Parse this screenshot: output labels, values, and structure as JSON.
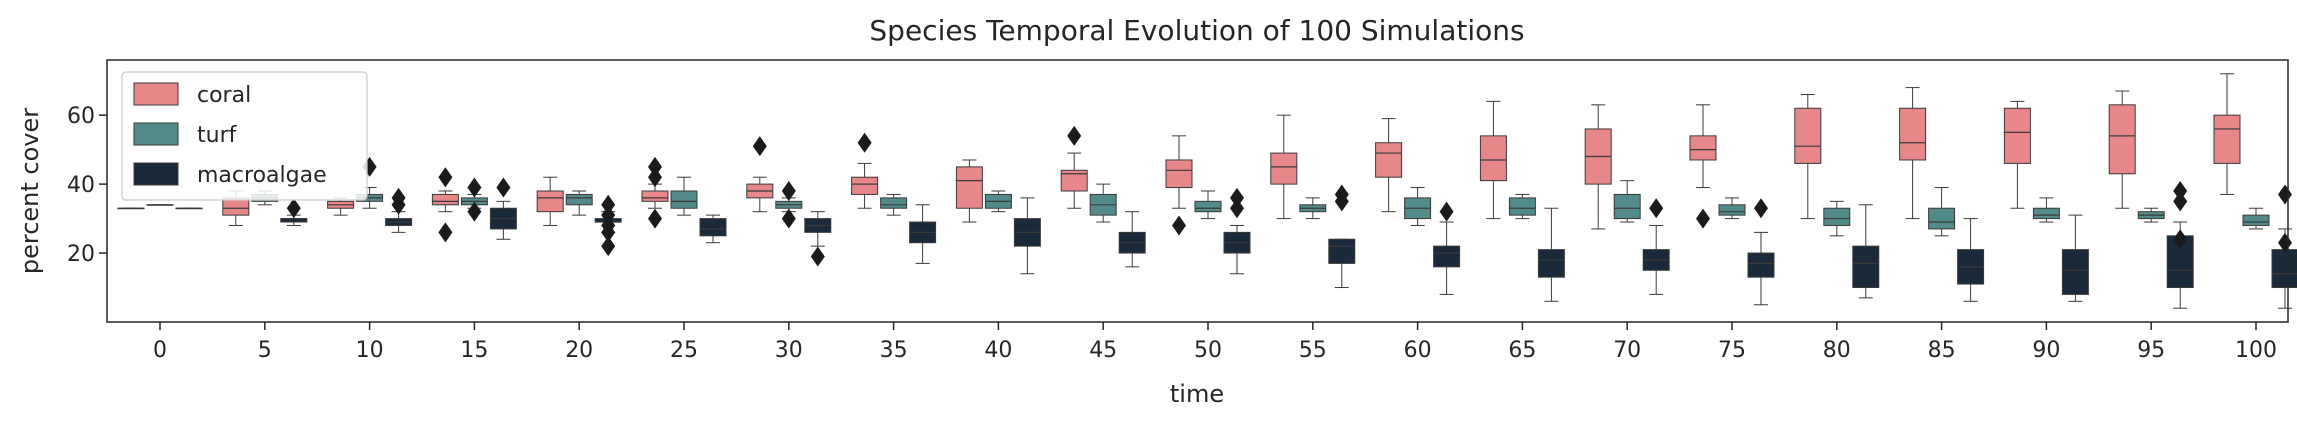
{
  "chart_data": {
    "type": "box",
    "title": "Species Temporal Evolution of 100 Simulations",
    "xlabel": "time",
    "ylabel": "percent cover",
    "categories": [
      "0",
      "5",
      "10",
      "15",
      "20",
      "25",
      "30",
      "35",
      "40",
      "45",
      "50",
      "55",
      "60",
      "65",
      "70",
      "75",
      "80",
      "85",
      "90",
      "95",
      "100"
    ],
    "ylim": [
      0,
      76
    ],
    "yticks": [
      20,
      40,
      60
    ],
    "grid": false,
    "legend_position": "top-left",
    "series": [
      {
        "name": "coral",
        "color": "#e8878a",
        "boxes": [
          {
            "min": 33,
            "q1": 33,
            "median": 33,
            "q3": 33,
            "max": 33,
            "outliers": []
          },
          {
            "min": 28,
            "q1": 31,
            "median": 33,
            "q3": 36,
            "max": 38,
            "outliers": []
          },
          {
            "min": 31,
            "q1": 33,
            "median": 34,
            "q3": 35,
            "max": 36,
            "outliers": []
          },
          {
            "min": 32,
            "q1": 34,
            "median": 35,
            "q3": 37,
            "max": 38,
            "outliers": [
              26,
              42
            ]
          },
          {
            "min": 28,
            "q1": 32,
            "median": 36,
            "q3": 38,
            "max": 42,
            "outliers": []
          },
          {
            "min": 33,
            "q1": 35,
            "median": 36,
            "q3": 38,
            "max": 40,
            "outliers": [
              30,
              42,
              45
            ]
          },
          {
            "min": 32,
            "q1": 36,
            "median": 38,
            "q3": 40,
            "max": 42,
            "outliers": [
              51
            ]
          },
          {
            "min": 33,
            "q1": 37,
            "median": 40,
            "q3": 42,
            "max": 46,
            "outliers": [
              52
            ]
          },
          {
            "min": 29,
            "q1": 33,
            "median": 41,
            "q3": 45,
            "max": 47,
            "outliers": []
          },
          {
            "min": 33,
            "q1": 38,
            "median": 43,
            "q3": 44,
            "max": 49,
            "outliers": [
              54
            ]
          },
          {
            "min": 33,
            "q1": 39,
            "median": 44,
            "q3": 47,
            "max": 54,
            "outliers": [
              28
            ]
          },
          {
            "min": 30,
            "q1": 40,
            "median": 45,
            "q3": 49,
            "max": 60,
            "outliers": []
          },
          {
            "min": 32,
            "q1": 42,
            "median": 49,
            "q3": 52,
            "max": 59,
            "outliers": []
          },
          {
            "min": 30,
            "q1": 41,
            "median": 47,
            "q3": 54,
            "max": 64,
            "outliers": []
          },
          {
            "min": 27,
            "q1": 40,
            "median": 48,
            "q3": 56,
            "max": 63,
            "outliers": []
          },
          {
            "min": 39,
            "q1": 47,
            "median": 50,
            "q3": 54,
            "max": 63,
            "outliers": [
              30
            ]
          },
          {
            "min": 30,
            "q1": 46,
            "median": 51,
            "q3": 62,
            "max": 66,
            "outliers": []
          },
          {
            "min": 30,
            "q1": 47,
            "median": 52,
            "q3": 62,
            "max": 68,
            "outliers": []
          },
          {
            "min": 33,
            "q1": 46,
            "median": 55,
            "q3": 62,
            "max": 64,
            "outliers": []
          },
          {
            "min": 33,
            "q1": 43,
            "median": 54,
            "q3": 63,
            "max": 67,
            "outliers": []
          },
          {
            "min": 37,
            "q1": 46,
            "median": 56,
            "q3": 60,
            "max": 72,
            "outliers": []
          }
        ]
      },
      {
        "name": "turf",
        "color": "#538a8a",
        "boxes": [
          {
            "min": 34,
            "q1": 34,
            "median": 34,
            "q3": 34,
            "max": 34,
            "outliers": []
          },
          {
            "min": 34,
            "q1": 35,
            "median": 36,
            "q3": 37,
            "max": 38,
            "outliers": []
          },
          {
            "min": 33,
            "q1": 35,
            "median": 36,
            "q3": 37,
            "max": 39,
            "outliers": [
              45
            ]
          },
          {
            "min": 33,
            "q1": 34,
            "median": 35,
            "q3": 36,
            "max": 37,
            "outliers": [
              32,
              39
            ]
          },
          {
            "min": 31,
            "q1": 34,
            "median": 36,
            "q3": 37,
            "max": 38,
            "outliers": []
          },
          {
            "min": 31,
            "q1": 33,
            "median": 35,
            "q3": 38,
            "max": 42,
            "outliers": []
          },
          {
            "min": 32,
            "q1": 33,
            "median": 34,
            "q3": 35,
            "max": 36,
            "outliers": [
              30,
              38
            ]
          },
          {
            "min": 31,
            "q1": 33,
            "median": 34,
            "q3": 36,
            "max": 37,
            "outliers": []
          },
          {
            "min": 32,
            "q1": 33,
            "median": 35,
            "q3": 37,
            "max": 38,
            "outliers": []
          },
          {
            "min": 29,
            "q1": 31,
            "median": 34,
            "q3": 37,
            "max": 40,
            "outliers": []
          },
          {
            "min": 30,
            "q1": 32,
            "median": 33,
            "q3": 35,
            "max": 38,
            "outliers": []
          },
          {
            "min": 30,
            "q1": 32,
            "median": 33,
            "q3": 34,
            "max": 36,
            "outliers": []
          },
          {
            "min": 28,
            "q1": 30,
            "median": 33,
            "q3": 36,
            "max": 39,
            "outliers": []
          },
          {
            "min": 30,
            "q1": 31,
            "median": 33,
            "q3": 36,
            "max": 37,
            "outliers": []
          },
          {
            "min": 29,
            "q1": 30,
            "median": 33,
            "q3": 37,
            "max": 41,
            "outliers": []
          },
          {
            "min": 30,
            "q1": 31,
            "median": 32,
            "q3": 34,
            "max": 36,
            "outliers": []
          },
          {
            "min": 25,
            "q1": 28,
            "median": 30,
            "q3": 33,
            "max": 35,
            "outliers": []
          },
          {
            "min": 25,
            "q1": 27,
            "median": 29,
            "q3": 33,
            "max": 39,
            "outliers": []
          },
          {
            "min": 29,
            "q1": 30,
            "median": 31,
            "q3": 33,
            "max": 36,
            "outliers": []
          },
          {
            "min": 29,
            "q1": 30,
            "median": 31,
            "q3": 32,
            "max": 33,
            "outliers": []
          },
          {
            "min": 27,
            "q1": 28,
            "median": 29,
            "q3": 31,
            "max": 33,
            "outliers": []
          }
        ]
      },
      {
        "name": "macroalgae",
        "color": "#1b2a3a",
        "boxes": [
          {
            "min": 33,
            "q1": 33,
            "median": 33,
            "q3": 33,
            "max": 33,
            "outliers": []
          },
          {
            "min": 28,
            "q1": 29,
            "median": 30,
            "q3": 30,
            "max": 31,
            "outliers": [
              33
            ]
          },
          {
            "min": 26,
            "q1": 28,
            "median": 29,
            "q3": 30,
            "max": 32,
            "outliers": [
              34,
              36
            ]
          },
          {
            "min": 24,
            "q1": 27,
            "median": 30,
            "q3": 33,
            "max": 35,
            "outliers": [
              39
            ]
          },
          {
            "min": 26,
            "q1": 29,
            "median": 29,
            "q3": 30,
            "max": 32,
            "outliers": [
              22,
              26,
              28,
              31,
              34
            ]
          },
          {
            "min": 23,
            "q1": 25,
            "median": 27,
            "q3": 30,
            "max": 31,
            "outliers": []
          },
          {
            "min": 22,
            "q1": 26,
            "median": 28,
            "q3": 30,
            "max": 32,
            "outliers": [
              19
            ]
          },
          {
            "min": 17,
            "q1": 23,
            "median": 26,
            "q3": 29,
            "max": 34,
            "outliers": []
          },
          {
            "min": 14,
            "q1": 22,
            "median": 26,
            "q3": 30,
            "max": 36,
            "outliers": []
          },
          {
            "min": 16,
            "q1": 20,
            "median": 23,
            "q3": 26,
            "max": 32,
            "outliers": []
          },
          {
            "min": 14,
            "q1": 20,
            "median": 23,
            "q3": 26,
            "max": 28,
            "outliers": [
              33,
              36
            ]
          },
          {
            "min": 10,
            "q1": 17,
            "median": 22,
            "q3": 24,
            "max": 24,
            "outliers": [
              35,
              37
            ]
          },
          {
            "min": 8,
            "q1": 16,
            "median": 20,
            "q3": 22,
            "max": 29,
            "outliers": [
              32
            ]
          },
          {
            "min": 6,
            "q1": 13,
            "median": 18,
            "q3": 21,
            "max": 33,
            "outliers": []
          },
          {
            "min": 8,
            "q1": 15,
            "median": 18,
            "q3": 21,
            "max": 28,
            "outliers": [
              33
            ]
          },
          {
            "min": 5,
            "q1": 13,
            "median": 17,
            "q3": 20,
            "max": 26,
            "outliers": [
              33
            ]
          },
          {
            "min": 7,
            "q1": 10,
            "median": 17,
            "q3": 22,
            "max": 34,
            "outliers": []
          },
          {
            "min": 6,
            "q1": 11,
            "median": 16,
            "q3": 21,
            "max": 30,
            "outliers": []
          },
          {
            "min": 6,
            "q1": 8,
            "median": 15,
            "q3": 21,
            "max": 31,
            "outliers": []
          },
          {
            "min": 4,
            "q1": 10,
            "median": 15,
            "q3": 25,
            "max": 29,
            "outliers": [
              24,
              35,
              38
            ]
          },
          {
            "min": 4,
            "q1": 10,
            "median": 14,
            "q3": 21,
            "max": 27,
            "outliers": [
              23,
              37
            ]
          }
        ]
      }
    ]
  }
}
